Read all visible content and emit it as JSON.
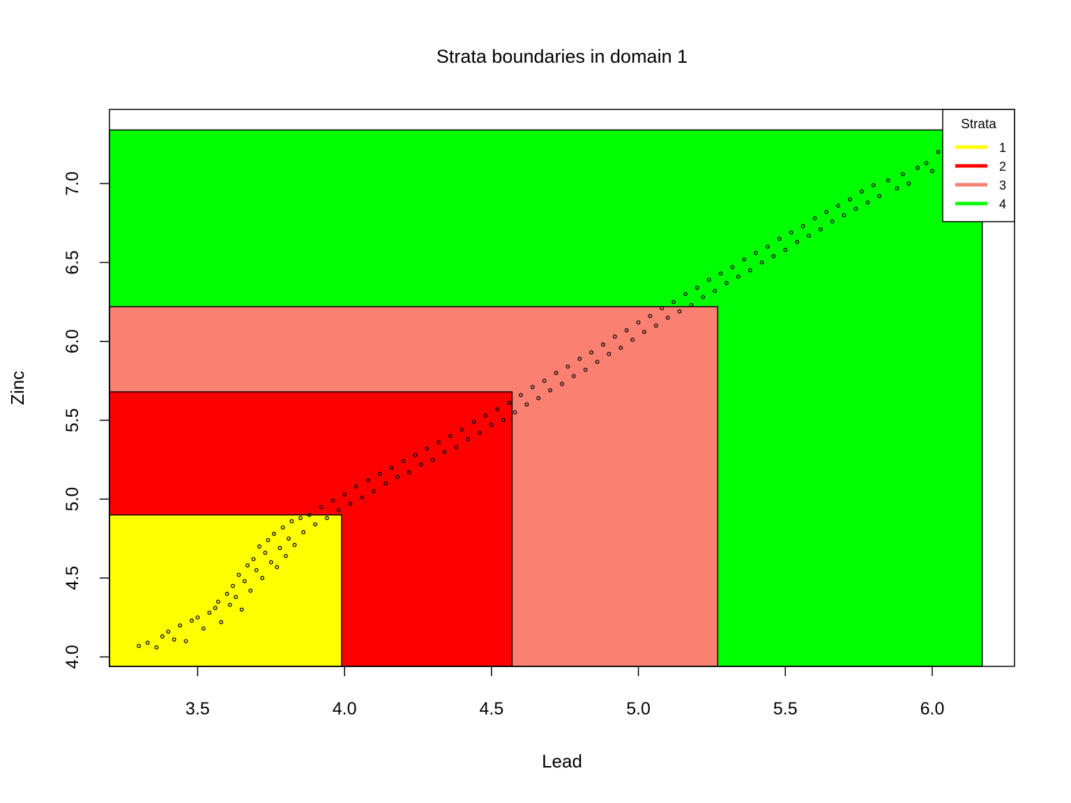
{
  "chart_data": {
    "type": "scatter",
    "title": "Strata boundaries in domain 1",
    "xlabel": "Lead",
    "ylabel": "Zinc",
    "xlim": [
      3.2,
      6.28
    ],
    "ylim": [
      3.94,
      7.47
    ],
    "x_ticks": [
      3.5,
      4.0,
      4.5,
      5.0,
      5.5,
      6.0
    ],
    "x_tick_labels": [
      "3.5",
      "4.0",
      "4.5",
      "5.0",
      "5.5",
      "6.0"
    ],
    "y_ticks": [
      4.0,
      4.5,
      5.0,
      5.5,
      6.0,
      6.5,
      7.0
    ],
    "y_tick_labels": [
      "4.0",
      "4.5",
      "5.0",
      "5.5",
      "6.0",
      "6.5",
      "7.0"
    ],
    "grid": false,
    "legend": {
      "title": "Strata",
      "placement": "top-right",
      "entries": [
        {
          "label": "1",
          "color": "#FFFF00"
        },
        {
          "label": "2",
          "color": "#FF0000"
        },
        {
          "label": "3",
          "color": "#FA8072"
        },
        {
          "label": "4",
          "color": "#00FF00"
        }
      ]
    },
    "strata": [
      {
        "stratum": "1",
        "color": "#FFFF00",
        "x_max": 3.99,
        "y_max": 4.9
      },
      {
        "stratum": "2",
        "color": "#FF0000",
        "x_max": 4.57,
        "y_max": 5.68
      },
      {
        "stratum": "3",
        "color": "#FA8072",
        "x_max": 5.27,
        "y_max": 6.22
      },
      {
        "stratum": "4",
        "color": "#00FF00",
        "x_max": 6.17,
        "y_max": 7.34
      }
    ],
    "points": [
      [
        3.3,
        4.07
      ],
      [
        3.33,
        4.09
      ],
      [
        3.36,
        4.06
      ],
      [
        3.38,
        4.13
      ],
      [
        3.4,
        4.16
      ],
      [
        3.42,
        4.11
      ],
      [
        3.44,
        4.2
      ],
      [
        3.46,
        4.1
      ],
      [
        3.48,
        4.23
      ],
      [
        3.5,
        4.25
      ],
      [
        3.52,
        4.18
      ],
      [
        3.54,
        4.28
      ],
      [
        3.56,
        4.31
      ],
      [
        3.57,
        4.35
      ],
      [
        3.58,
        4.22
      ],
      [
        3.6,
        4.4
      ],
      [
        3.61,
        4.33
      ],
      [
        3.62,
        4.45
      ],
      [
        3.63,
        4.38
      ],
      [
        3.64,
        4.52
      ],
      [
        3.65,
        4.3
      ],
      [
        3.66,
        4.48
      ],
      [
        3.67,
        4.58
      ],
      [
        3.68,
        4.42
      ],
      [
        3.69,
        4.62
      ],
      [
        3.7,
        4.55
      ],
      [
        3.71,
        4.7
      ],
      [
        3.72,
        4.5
      ],
      [
        3.73,
        4.66
      ],
      [
        3.74,
        4.74
      ],
      [
        3.75,
        4.6
      ],
      [
        3.76,
        4.78
      ],
      [
        3.77,
        4.57
      ],
      [
        3.78,
        4.69
      ],
      [
        3.79,
        4.82
      ],
      [
        3.8,
        4.64
      ],
      [
        3.81,
        4.75
      ],
      [
        3.82,
        4.86
      ],
      [
        3.83,
        4.71
      ],
      [
        3.85,
        4.88
      ],
      [
        3.86,
        4.79
      ],
      [
        3.88,
        4.9
      ],
      [
        3.9,
        4.84
      ],
      [
        3.92,
        4.95
      ],
      [
        3.94,
        4.88
      ],
      [
        3.96,
        4.99
      ],
      [
        3.98,
        4.93
      ],
      [
        4.0,
        5.03
      ],
      [
        4.02,
        4.97
      ],
      [
        4.04,
        5.08
      ],
      [
        4.06,
        5.01
      ],
      [
        4.08,
        5.12
      ],
      [
        4.1,
        5.05
      ],
      [
        4.12,
        5.16
      ],
      [
        4.14,
        5.1
      ],
      [
        4.16,
        5.2
      ],
      [
        4.18,
        5.14
      ],
      [
        4.2,
        5.24
      ],
      [
        4.22,
        5.17
      ],
      [
        4.24,
        5.28
      ],
      [
        4.26,
        5.22
      ],
      [
        4.28,
        5.32
      ],
      [
        4.3,
        5.25
      ],
      [
        4.32,
        5.36
      ],
      [
        4.34,
        5.3
      ],
      [
        4.36,
        5.4
      ],
      [
        4.38,
        5.33
      ],
      [
        4.4,
        5.44
      ],
      [
        4.42,
        5.38
      ],
      [
        4.44,
        5.49
      ],
      [
        4.46,
        5.42
      ],
      [
        4.48,
        5.53
      ],
      [
        4.5,
        5.47
      ],
      [
        4.52,
        5.57
      ],
      [
        4.54,
        5.5
      ],
      [
        4.56,
        5.61
      ],
      [
        4.58,
        5.55
      ],
      [
        4.6,
        5.66
      ],
      [
        4.62,
        5.6
      ],
      [
        4.64,
        5.71
      ],
      [
        4.66,
        5.64
      ],
      [
        4.68,
        5.75
      ],
      [
        4.7,
        5.69
      ],
      [
        4.72,
        5.8
      ],
      [
        4.74,
        5.73
      ],
      [
        4.76,
        5.84
      ],
      [
        4.78,
        5.78
      ],
      [
        4.8,
        5.89
      ],
      [
        4.82,
        5.82
      ],
      [
        4.84,
        5.93
      ],
      [
        4.86,
        5.87
      ],
      [
        4.88,
        5.98
      ],
      [
        4.9,
        5.92
      ],
      [
        4.92,
        6.03
      ],
      [
        4.94,
        5.96
      ],
      [
        4.96,
        6.07
      ],
      [
        4.98,
        6.01
      ],
      [
        5.0,
        6.12
      ],
      [
        5.02,
        6.06
      ],
      [
        5.04,
        6.16
      ],
      [
        5.06,
        6.1
      ],
      [
        5.08,
        6.21
      ],
      [
        5.1,
        6.15
      ],
      [
        5.12,
        6.25
      ],
      [
        5.14,
        6.19
      ],
      [
        5.16,
        6.3
      ],
      [
        5.18,
        6.23
      ],
      [
        5.2,
        6.34
      ],
      [
        5.22,
        6.28
      ],
      [
        5.24,
        6.39
      ],
      [
        5.26,
        6.32
      ],
      [
        5.28,
        6.43
      ],
      [
        5.3,
        6.37
      ],
      [
        5.32,
        6.47
      ],
      [
        5.34,
        6.41
      ],
      [
        5.36,
        6.52
      ],
      [
        5.38,
        6.45
      ],
      [
        5.4,
        6.56
      ],
      [
        5.42,
        6.5
      ],
      [
        5.44,
        6.6
      ],
      [
        5.46,
        6.54
      ],
      [
        5.48,
        6.65
      ],
      [
        5.5,
        6.58
      ],
      [
        5.52,
        6.69
      ],
      [
        5.54,
        6.63
      ],
      [
        5.56,
        6.73
      ],
      [
        5.58,
        6.67
      ],
      [
        5.6,
        6.78
      ],
      [
        5.62,
        6.71
      ],
      [
        5.64,
        6.82
      ],
      [
        5.66,
        6.76
      ],
      [
        5.68,
        6.86
      ],
      [
        5.7,
        6.8
      ],
      [
        5.72,
        6.9
      ],
      [
        5.74,
        6.84
      ],
      [
        5.76,
        6.95
      ],
      [
        5.78,
        6.88
      ],
      [
        5.8,
        6.99
      ],
      [
        5.82,
        6.92
      ],
      [
        5.85,
        7.02
      ],
      [
        5.88,
        6.97
      ],
      [
        5.9,
        7.06
      ],
      [
        5.92,
        7.0
      ],
      [
        5.95,
        7.1
      ],
      [
        5.98,
        7.13
      ],
      [
        6.0,
        7.08
      ],
      [
        6.02,
        7.2
      ],
      [
        6.04,
        7.26
      ],
      [
        6.06,
        7.3
      ],
      [
        6.08,
        7.33
      ]
    ]
  }
}
